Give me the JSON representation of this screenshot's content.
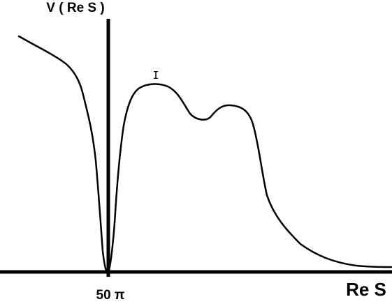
{
  "diagram": {
    "y_axis_label": "V ( Re S )",
    "x_axis_label": "Re S",
    "tick_label": "50 π",
    "peak_marker": "I"
  }
}
